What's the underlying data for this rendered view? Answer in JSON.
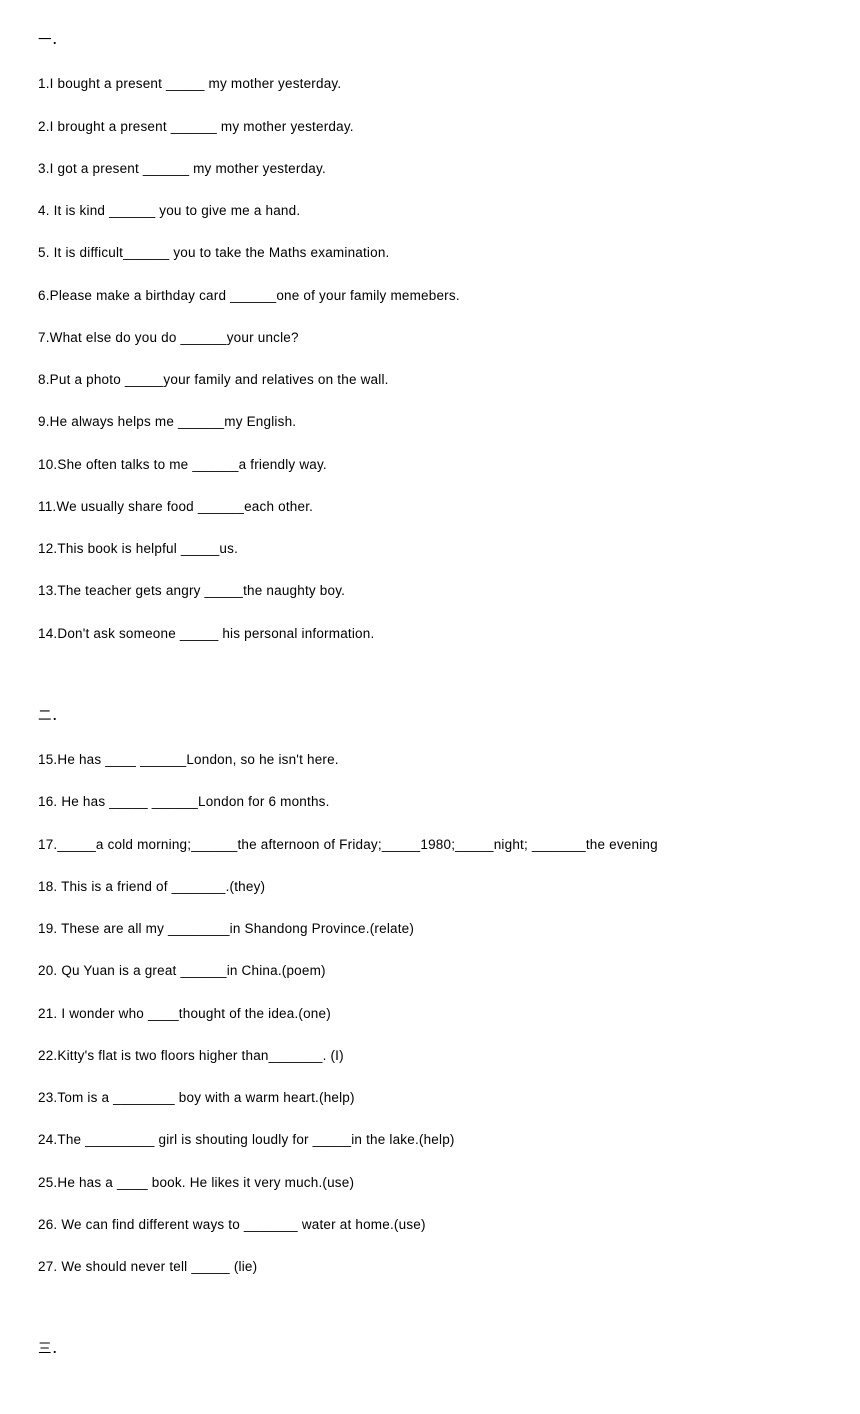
{
  "section1": {
    "header": "一．",
    "questions": [
      "1.I bought a present _____ my mother yesterday.",
      "2.I brought a present ______ my mother yesterday.",
      "3.I got a present ______ my mother yesterday.",
      "4. It is kind ______ you to give me a hand.",
      "5. It is difficult______ you to take the Maths examination.",
      "6.Please make a birthday card ______one of your family memebers.",
      "7.What else do you do ______your uncle?",
      "8.Put a photo _____your family and relatives on the wall.",
      "9.He always helps me ______my English.",
      "10.She often talks to me ______a friendly way.",
      "11.We usually share food ______each other.",
      "12.This book is helpful _____us.",
      "13.The teacher gets angry _____the naughty boy.",
      "14.Don't ask someone  _____ his personal information."
    ]
  },
  "section2": {
    "header": "二．",
    "questions": [
      "15.He has ____  ______London, so he isn't here.",
      "16. He has _____ ______London for 6 months.",
      "17._____a cold morning;______the afternoon of Friday;_____1980;_____night; _______the evening",
      "18. This is a friend of _______.(they)",
      "19. These are all my ________in Shandong Province.(relate)",
      "20. Qu Yuan is a great ______in China.(poem)",
      "21. I wonder who ____thought of the idea.(one)",
      "22.Kitty's flat is two floors higher than_______. (I)",
      "23.Tom is a ________ boy with a warm heart.(help)",
      "24.The _________ girl is shouting loudly for _____in the lake.(help)",
      "25.He has a ____ book. He likes it very much.(use)",
      "26. We can find different ways to _______ water at home.(use)",
      "27. We should never tell _____ (lie)"
    ]
  },
  "section3": {
    "header": "三．"
  }
}
